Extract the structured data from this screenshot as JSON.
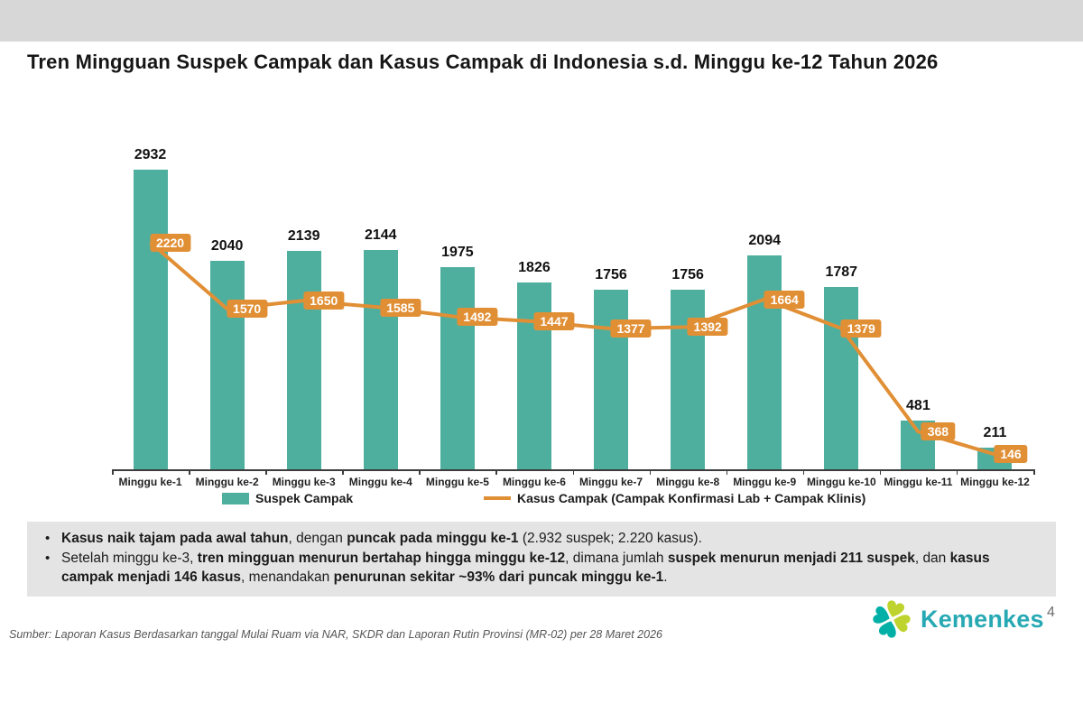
{
  "slide": {
    "title": "Tren Mingguan Suspek Campak dan Kasus Campak di Indonesia s.d. Minggu ke-12 Tahun 2026",
    "page_number": "4",
    "source_note": "Sumber: Laporan Kasus Berdasarkan tanggal Mulai Ruam via  NAR, SKDR dan  Laporan Rutin Provinsi (MR-02) per 28 Maret  2026",
    "logo_text": "Kemenkes"
  },
  "chart_data": {
    "type": "bar",
    "title": "Tren Mingguan Suspek Campak dan Kasus Campak di Indonesia s.d. Minggu ke-12 Tahun 2026",
    "categories": [
      "Minggu ke-1",
      "Minggu ke-2",
      "Minggu ke-3",
      "Minggu ke-4",
      "Minggu ke-5",
      "Minggu ke-6",
      "Minggu ke-7",
      "Minggu ke-8",
      "Minggu ke-9",
      "Minggu ke-10",
      "Minggu ke-11",
      "Minggu ke-12"
    ],
    "series": [
      {
        "name": "Suspek Campak",
        "type": "bar",
        "color": "#4FAF9E",
        "values": [
          2932,
          2040,
          2139,
          2144,
          1975,
          1826,
          1756,
          1756,
          2094,
          1787,
          481,
          211
        ]
      },
      {
        "name": "Kasus Campak (Campak Konfirmasi Lab + Campak Klinis)",
        "type": "line",
        "color": "#E18F35",
        "values": [
          2220,
          1570,
          1650,
          1585,
          1492,
          1447,
          1377,
          1392,
          1664,
          1379,
          368,
          146
        ]
      }
    ],
    "xlabel": "",
    "ylabel": "",
    "ylim": [
      0,
      2932
    ],
    "grid": false,
    "legend_position": "bottom",
    "data_labels": true
  },
  "insights": {
    "bullets": [
      {
        "segments": [
          {
            "text": "Kasus naik tajam pada awal tahun",
            "bold": true
          },
          {
            "text": ", dengan ",
            "bold": false
          },
          {
            "text": "puncak pada minggu ke-1",
            "bold": true
          },
          {
            "text": " (2.932 suspek; 2.220 kasus).",
            "bold": false
          }
        ]
      },
      {
        "segments": [
          {
            "text": "Setelah minggu ke-3, ",
            "bold": false
          },
          {
            "text": "tren mingguan menurun bertahap hingga minggu ke-12",
            "bold": true
          },
          {
            "text": ", dimana jumlah ",
            "bold": false
          },
          {
            "text": "suspek menurun menjadi 211 suspek",
            "bold": true
          },
          {
            "text": ", dan ",
            "bold": false
          },
          {
            "text": "kasus campak menjadi 146 kasus",
            "bold": true
          },
          {
            "text": ", menandakan ",
            "bold": false
          },
          {
            "text": "penurunan sekitar ~93% dari puncak minggu ke-1",
            "bold": true
          },
          {
            "text": ".",
            "bold": false
          }
        ]
      }
    ]
  },
  "colors": {
    "bar": "#4FAF9E",
    "line": "#E18F35",
    "axis": "#3C3C3C",
    "top_band": "#D7D7D7",
    "insight_bg": "#E4E4E4",
    "wordmark": "#27A9B4",
    "brand_teal": "#00AFA6",
    "brand_lime": "#BFD32E",
    "page_number_gray": "#6E6E6E"
  }
}
